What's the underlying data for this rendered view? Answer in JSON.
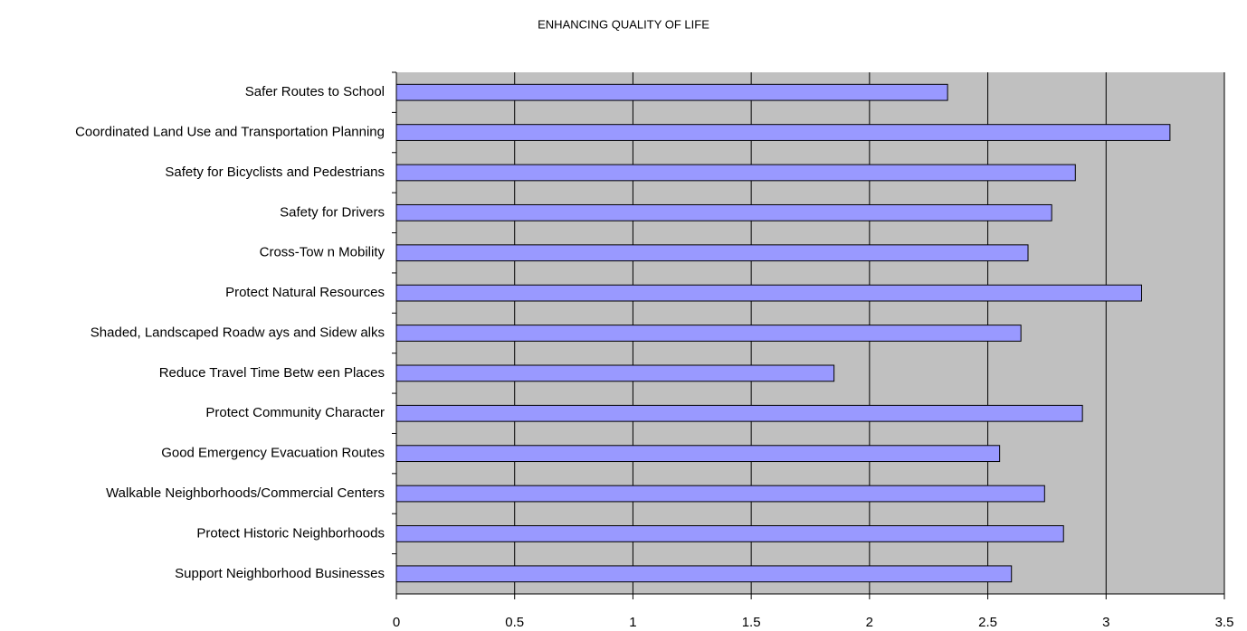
{
  "chart_data": {
    "type": "bar",
    "orientation": "horizontal",
    "title": "ENHANCING QUALITY OF LIFE",
    "categories": [
      "Safer Routes to School",
      "Coordinated Land Use and Transportation Planning",
      "Safety for Bicyclists and Pedestrians",
      "Safety for Drivers",
      "Cross-Tow n Mobility",
      "Protect Natural Resources",
      "Shaded, Landscaped Roadw ays and Sidew alks",
      "Reduce Travel Time Betw een Places",
      "Protect Community Character",
      "Good Emergency Evacuation Routes",
      "Walkable Neighborhoods/Commercial Centers",
      "Protect Historic Neighborhoods",
      "Support Neighborhood Businesses"
    ],
    "values": [
      2.33,
      3.27,
      2.87,
      2.77,
      2.67,
      3.15,
      2.64,
      1.85,
      2.9,
      2.55,
      2.74,
      2.82,
      2.6
    ],
    "color": "#9999ff",
    "plot_background": "#c0c0c0",
    "xlim": [
      0,
      3.5
    ],
    "xticks": [
      0,
      0.5,
      1,
      1.5,
      2,
      2.5,
      3,
      3.5
    ],
    "grid": true
  }
}
